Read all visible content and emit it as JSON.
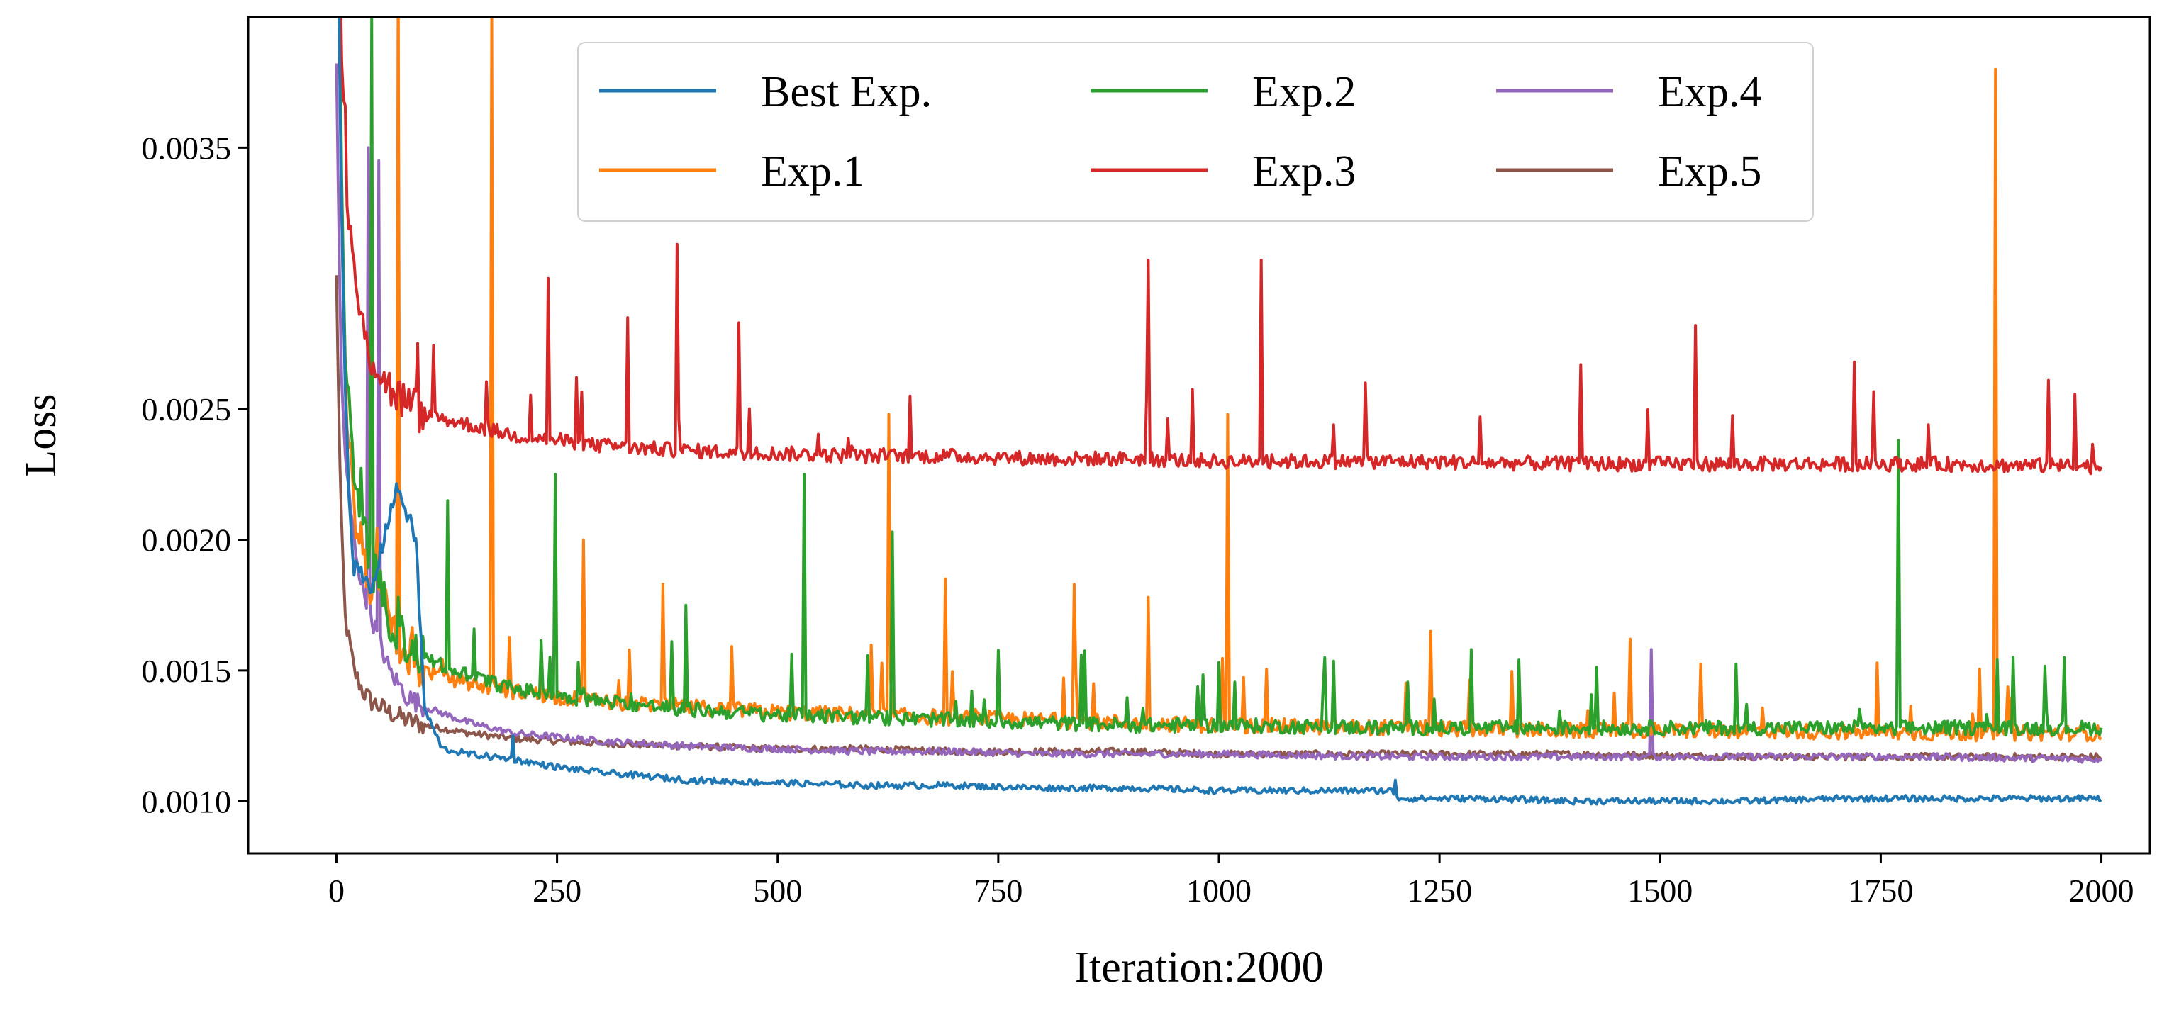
{
  "chart_data": {
    "type": "line",
    "xlabel": "Iteration:2000",
    "ylabel": "Loss",
    "xlim": [
      -100,
      2055
    ],
    "ylim": [
      0.0008,
      0.004
    ],
    "xticks": [
      0,
      250,
      500,
      750,
      1000,
      1250,
      1500,
      1750,
      2000
    ],
    "xtick_labels": [
      "0",
      "250",
      "500",
      "750",
      "1000",
      "1250",
      "1500",
      "1750",
      "2000"
    ],
    "yticks": [
      0.001,
      0.0015,
      0.002,
      0.0025,
      0.0035
    ],
    "ytick_labels": [
      "0.0010",
      "0.0015",
      "0.0020",
      "0.0025",
      "0.0035"
    ],
    "grid": false,
    "legend_position": "top-center",
    "legend_columns": 3,
    "series": [
      {
        "name": "Best Exp.",
        "color": "#1f77b4",
        "x": [
          0,
          5,
          10,
          15,
          20,
          30,
          40,
          50,
          60,
          70,
          80,
          90,
          100,
          120,
          150,
          200,
          250,
          300,
          400,
          500,
          600,
          700,
          800,
          900,
          1000,
          1100,
          1195,
          1205,
          1300,
          1400,
          1500,
          1600,
          1700,
          1800,
          1900,
          2000
        ],
        "y": [
          0.005,
          0.0034,
          0.0026,
          0.0021,
          0.0019,
          0.00185,
          0.0018,
          0.00195,
          0.0021,
          0.0022,
          0.0021,
          0.002,
          0.00135,
          0.0012,
          0.00118,
          0.00116,
          0.00113,
          0.00111,
          0.00108,
          0.00107,
          0.00106,
          0.00106,
          0.00105,
          0.00105,
          0.00104,
          0.00104,
          0.00104,
          0.00101,
          0.00101,
          0.001,
          0.001,
          0.001,
          0.00101,
          0.00101,
          0.00101,
          0.00101
        ],
        "spikes": [
          [
            200,
            0.00125
          ],
          [
            1200,
            0.00108
          ]
        ]
      },
      {
        "name": "Exp.1",
        "color": "#ff7f0e",
        "x": [
          0,
          5,
          10,
          20,
          40,
          60,
          80,
          100,
          150,
          200,
          300,
          400,
          500,
          600,
          700,
          800,
          900,
          1000,
          1200,
          1400,
          1600,
          1800,
          2000
        ],
        "y": [
          0.005,
          0.0035,
          0.0026,
          0.0021,
          0.0018,
          0.0017,
          0.00155,
          0.0015,
          0.00145,
          0.00142,
          0.00138,
          0.00136,
          0.00134,
          0.00133,
          0.00132,
          0.00131,
          0.0013,
          0.00129,
          0.00128,
          0.00127,
          0.00127,
          0.00126,
          0.00126
        ],
        "spikes": [
          [
            70,
            0.0042
          ],
          [
            175,
            0.004
          ],
          [
            280,
            0.002
          ],
          [
            370,
            0.00183
          ],
          [
            625,
            0.00248
          ],
          [
            690,
            0.00185
          ],
          [
            835,
            0.00183
          ],
          [
            920,
            0.00178
          ],
          [
            1010,
            0.00248
          ],
          [
            1240,
            0.00165
          ],
          [
            1465,
            0.00162
          ],
          [
            1880,
            0.0038
          ]
        ]
      },
      {
        "name": "Exp.2",
        "color": "#2ca02c",
        "x": [
          0,
          5,
          10,
          20,
          40,
          60,
          80,
          100,
          150,
          200,
          300,
          400,
          500,
          600,
          700,
          800,
          900,
          1000,
          1200,
          1400,
          1600,
          1800,
          2000
        ],
        "y": [
          0.005,
          0.0036,
          0.0027,
          0.0022,
          0.0019,
          0.0017,
          0.0016,
          0.00155,
          0.00148,
          0.00143,
          0.00138,
          0.00135,
          0.00133,
          0.00132,
          0.00131,
          0.0013,
          0.00129,
          0.00129,
          0.00128,
          0.00128,
          0.00128,
          0.00128,
          0.00128
        ],
        "spikes": [
          [
            40,
            0.004
          ],
          [
            125,
            0.00215
          ],
          [
            248,
            0.00225
          ],
          [
            395,
            0.00175
          ],
          [
            530,
            0.00225
          ],
          [
            630,
            0.00203
          ],
          [
            1285,
            0.00158
          ],
          [
            1770,
            0.00238
          ],
          [
            1900,
            0.00155
          ]
        ]
      },
      {
        "name": "Exp.3",
        "color": "#d62728",
        "x": [
          0,
          5,
          10,
          20,
          30,
          40,
          60,
          80,
          100,
          150,
          200,
          300,
          400,
          500,
          600,
          700,
          800,
          900,
          1000,
          1200,
          1400,
          1600,
          1800,
          2000
        ],
        "y": [
          0.005,
          0.004,
          0.0034,
          0.003,
          0.0028,
          0.0027,
          0.00258,
          0.00252,
          0.00248,
          0.00244,
          0.0024,
          0.00236,
          0.00234,
          0.00233,
          0.00232,
          0.00232,
          0.00231,
          0.00231,
          0.0023,
          0.0023,
          0.00229,
          0.00229,
          0.00229,
          0.00228
        ],
        "spikes": [
          [
            240,
            0.003
          ],
          [
            330,
            0.00285
          ],
          [
            385,
            0.00313
          ],
          [
            455,
            0.00283
          ],
          [
            920,
            0.00307
          ],
          [
            1048,
            0.00307
          ],
          [
            1165,
            0.0026
          ],
          [
            1410,
            0.00267
          ],
          [
            1540,
            0.00282
          ],
          [
            1720,
            0.00268
          ],
          [
            1940,
            0.00261
          ]
        ]
      },
      {
        "name": "Exp.4",
        "color": "#9467bd",
        "x": [
          0,
          5,
          10,
          20,
          30,
          40,
          50,
          60,
          80,
          100,
          150,
          200,
          300,
          400,
          500,
          600,
          700,
          800,
          900,
          1000,
          1200,
          1400,
          1600,
          1800,
          2000
        ],
        "y": [
          0.0038,
          0.0027,
          0.0023,
          0.002,
          0.0018,
          0.0017,
          0.0016,
          0.0015,
          0.0014,
          0.00136,
          0.0013,
          0.00126,
          0.00123,
          0.00121,
          0.0012,
          0.00119,
          0.00119,
          0.00118,
          0.00118,
          0.00118,
          0.00117,
          0.00117,
          0.00117,
          0.00117,
          0.00116
        ],
        "spikes": [
          [
            35,
            0.0035
          ],
          [
            48,
            0.00345
          ],
          [
            1490,
            0.00158
          ]
        ]
      },
      {
        "name": "Exp.5",
        "color": "#8c564b",
        "x": [
          0,
          5,
          10,
          20,
          30,
          40,
          60,
          80,
          100,
          150,
          200,
          300,
          400,
          500,
          600,
          700,
          800,
          900,
          1000,
          1200,
          1400,
          1600,
          1800,
          2000
        ],
        "y": [
          0.003,
          0.0021,
          0.0017,
          0.0015,
          0.00142,
          0.00138,
          0.00134,
          0.00131,
          0.00129,
          0.00126,
          0.00124,
          0.00122,
          0.00121,
          0.0012,
          0.0012,
          0.00119,
          0.00119,
          0.00119,
          0.00118,
          0.00118,
          0.00118,
          0.00117,
          0.00117,
          0.00117
        ],
        "spikes": []
      }
    ]
  }
}
